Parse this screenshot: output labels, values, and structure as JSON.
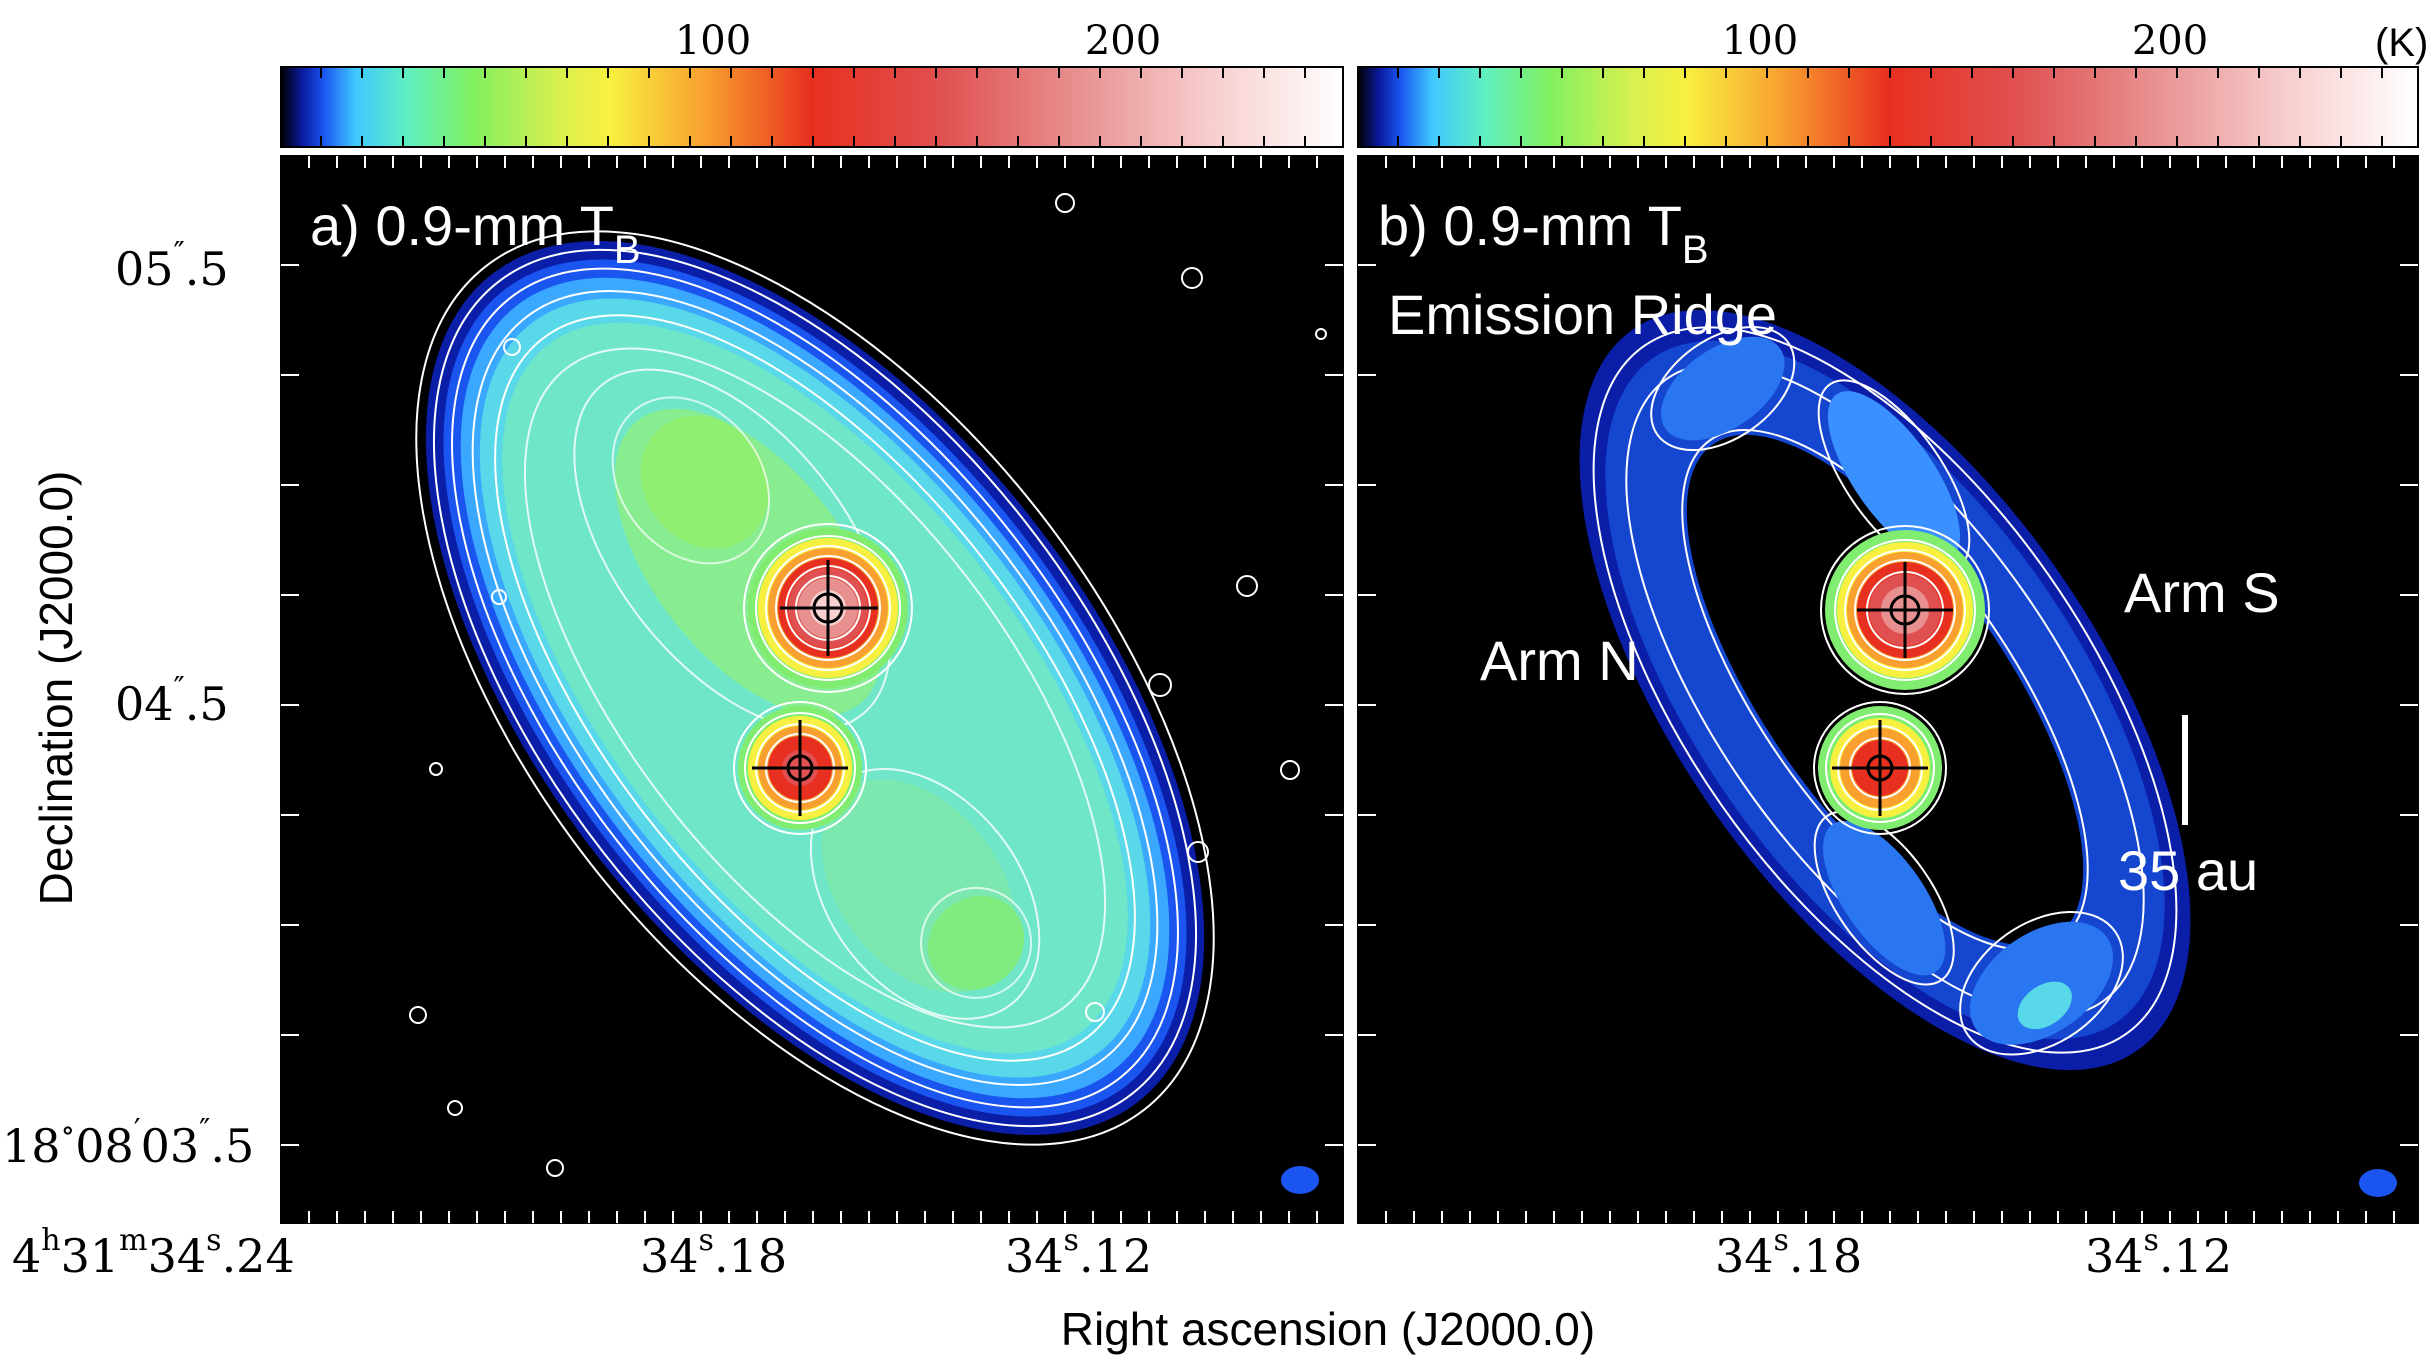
{
  "figure": {
    "xlabel": "Right ascension (J2000.0)",
    "ylabel": "Declination (J2000.0)",
    "colorbar_unit": "(K)"
  },
  "colors": {
    "background": "#000000",
    "contour": "#ffffff",
    "beam": "#1a55f0",
    "colormap": [
      "#000000",
      "#0a1aa0",
      "#1a55f0",
      "#40c8ff",
      "#60f0c0",
      "#80f060",
      "#d8f050",
      "#f8f040",
      "#f8a030",
      "#e83020",
      "#e05050",
      "#e89090",
      "#f8d0d0",
      "#ffffff"
    ]
  },
  "chart_data": [
    {
      "type": "heatmap",
      "panel": "a",
      "title": "a) 0.9-mm T",
      "title_subscript": "B",
      "colorbar": {
        "ticks": [
          100,
          200
        ],
        "tick_labels": [
          "100",
          "200"
        ],
        "range": [
          0,
          270
        ]
      },
      "x_tick_labels": [
        {
          "h": "4",
          "m": "31",
          "s": "34",
          "frac": ".24"
        },
        {
          "s": "34",
          "frac": ".18"
        },
        {
          "s": "34",
          "frac": ".12"
        }
      ],
      "y_tick_labels": [
        {
          "label": "05",
          "frac": ".5"
        },
        {
          "label": "04",
          "frac": ".5"
        },
        {
          "deg": "18",
          "arcmin": "08",
          "arcsec": "03",
          "frac": ".5"
        }
      ],
      "sources": [
        "northern peak",
        "southern peak"
      ],
      "annotations": []
    },
    {
      "type": "heatmap",
      "panel": "b",
      "title": "b) 0.9-mm T",
      "title_subscript": "B",
      "subtitle": "Emission Ridge",
      "colorbar": {
        "ticks": [
          100,
          200
        ],
        "tick_labels": [
          "100",
          "200"
        ],
        "range": [
          0,
          270
        ]
      },
      "x_tick_labels": [
        {
          "s": "34",
          "frac": ".18"
        },
        {
          "s": "34",
          "frac": ".12"
        }
      ],
      "annotations": [
        "Arm N",
        "Arm S"
      ],
      "scale_bar": "35 au"
    }
  ]
}
